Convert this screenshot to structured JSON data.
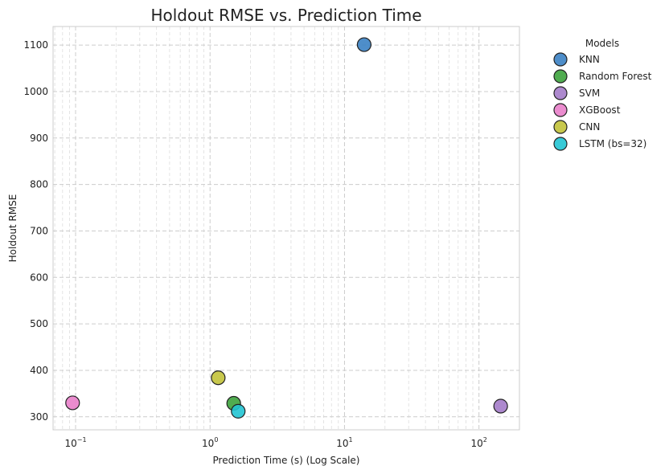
{
  "chart_data": {
    "type": "scatter",
    "title": "Holdout RMSE vs. Prediction Time",
    "xlabel": "Prediction Time (s) (Log Scale)",
    "ylabel": "Holdout RMSE",
    "xscale": "log",
    "xlim": [
      0.068,
      200
    ],
    "ylim": [
      272,
      1140
    ],
    "xticks": [
      0.1,
      1,
      10,
      100
    ],
    "xtick_labels": [
      {
        "base": "10",
        "exp": "−1"
      },
      {
        "base": "10",
        "exp": "0"
      },
      {
        "base": "10",
        "exp": "1"
      },
      {
        "base": "10",
        "exp": "2"
      }
    ],
    "yticks": [
      300,
      400,
      500,
      600,
      700,
      800,
      900,
      1000,
      1100
    ],
    "grid": true,
    "legend": {
      "title": "Models",
      "placement": "outside-right"
    },
    "series": [
      {
        "name": "KNN",
        "color": "#3b82c4",
        "x": 14.0,
        "y": 1101
      },
      {
        "name": "Random Forest",
        "color": "#3da33d",
        "x": 1.5,
        "y": 329
      },
      {
        "name": "SVM",
        "color": "#a47cc9",
        "x": 145,
        "y": 323
      },
      {
        "name": "XGBoost",
        "color": "#e97fca",
        "x": 0.095,
        "y": 330
      },
      {
        "name": "CNN",
        "color": "#c2c23a",
        "x": 1.15,
        "y": 384
      },
      {
        "name": "LSTM (bs=32)",
        "color": "#22c4d3",
        "x": 1.62,
        "y": 312
      }
    ]
  }
}
